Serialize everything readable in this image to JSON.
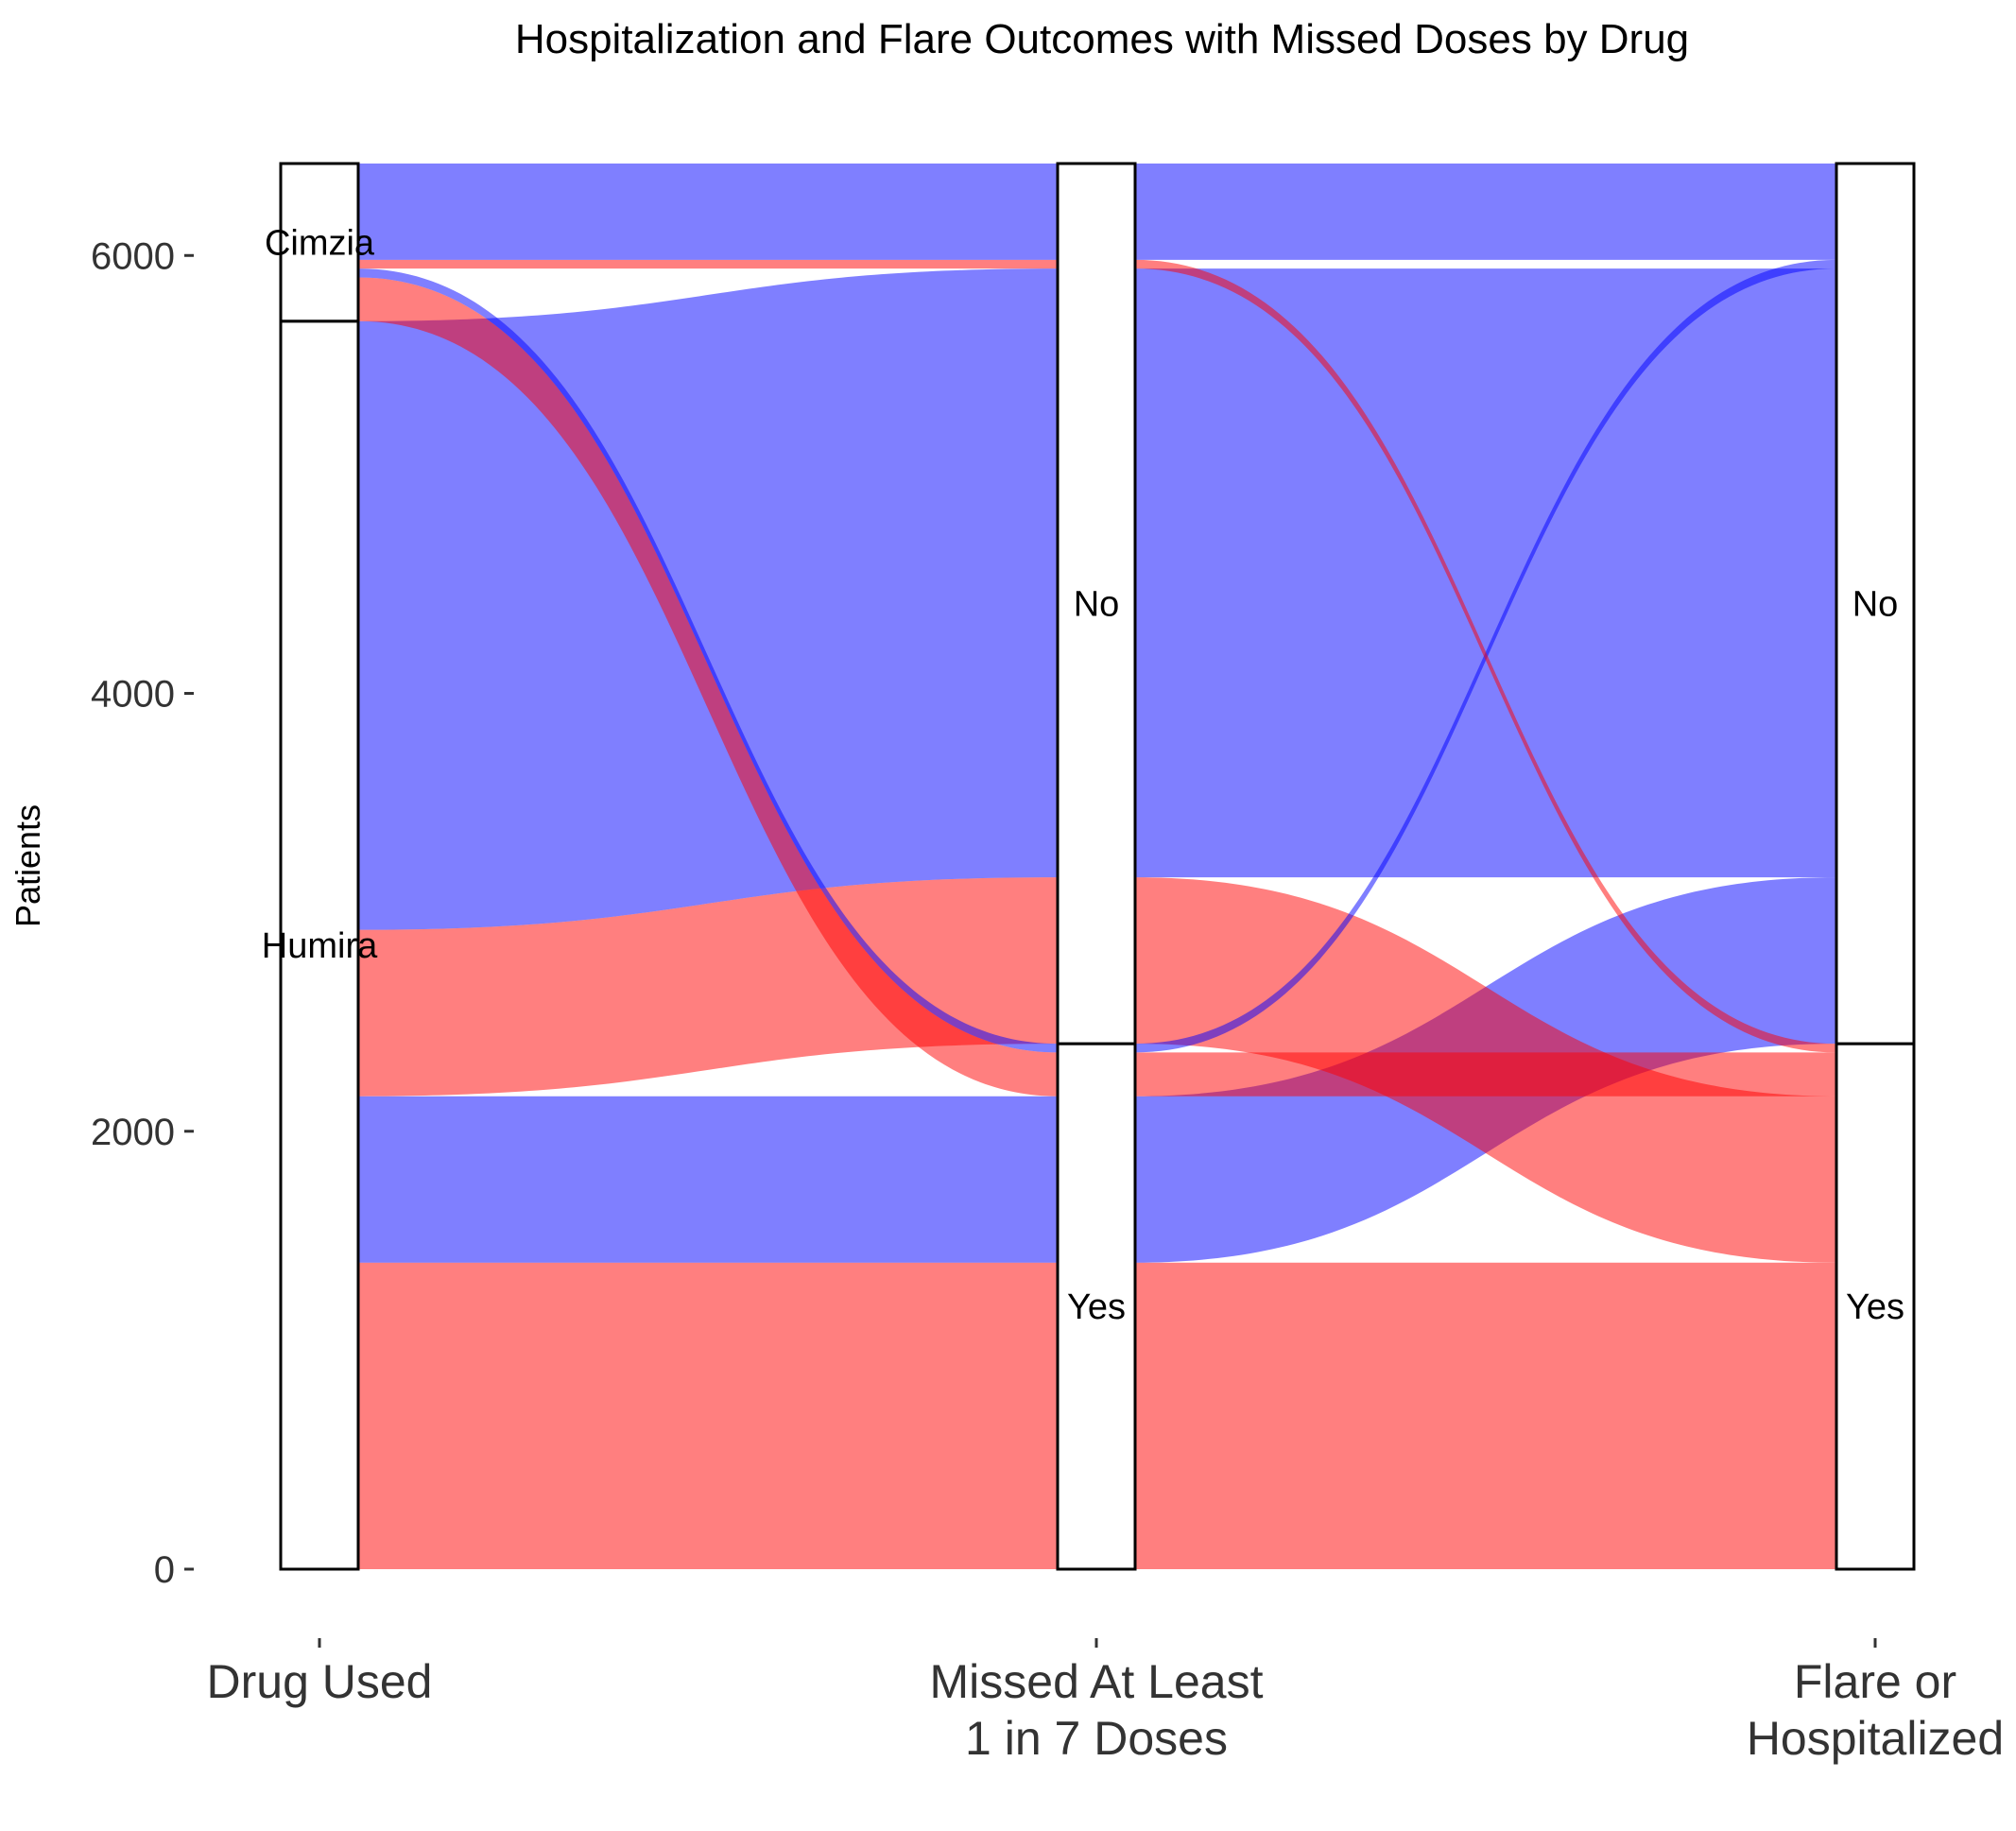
{
  "chart_data": {
    "type": "alluvial",
    "title": "Hospitalization and Flare Outcomes with Missed Doses by Drug",
    "ylabel": "Patients",
    "ylim": [
      0,
      6420
    ],
    "yticks": [
      0,
      2000,
      4000,
      6000
    ],
    "axes": [
      {
        "lines": [
          "Drug Used"
        ],
        "strata": [
          "Humira",
          "Cimzia"
        ]
      },
      {
        "lines": [
          "Missed At Least",
          "1 in 7 Doses"
        ],
        "strata": [
          "Yes",
          "No"
        ]
      },
      {
        "lines": [
          "Flare or",
          "Hospitalized"
        ],
        "strata": [
          "Yes",
          "No"
        ]
      }
    ],
    "fill_legend": {
      "Yes": "#ff0000",
      "No": "#0000ff"
    },
    "flows": [
      {
        "drug": "Humira",
        "missed": "Yes",
        "outcome": "Yes",
        "count": 1400
      },
      {
        "drug": "Humira",
        "missed": "Yes",
        "outcome": "No",
        "count": 760
      },
      {
        "drug": "Humira",
        "missed": "No",
        "outcome": "Yes",
        "count": 760
      },
      {
        "drug": "Humira",
        "missed": "No",
        "outcome": "No",
        "count": 2780
      },
      {
        "drug": "Cimzia",
        "missed": "Yes",
        "outcome": "Yes",
        "count": 200
      },
      {
        "drug": "Cimzia",
        "missed": "Yes",
        "outcome": "No",
        "count": 40
      },
      {
        "drug": "Cimzia",
        "missed": "No",
        "outcome": "Yes",
        "count": 40
      },
      {
        "drug": "Cimzia",
        "missed": "No",
        "outcome": "No",
        "count": 440
      }
    ]
  }
}
